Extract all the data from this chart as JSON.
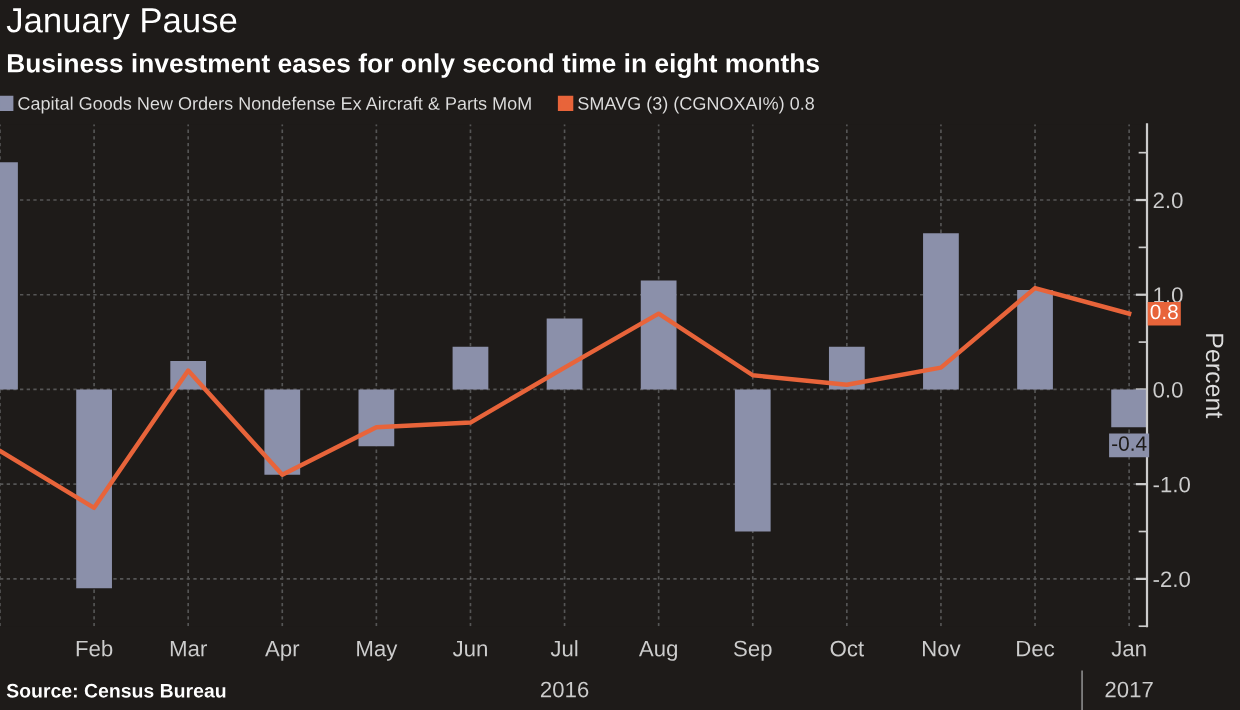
{
  "chart_data": {
    "type": "bar",
    "title": "January Pause",
    "subtitle": "Business investment eases for only second time in eight months",
    "ylabel": "Percent",
    "categories": [
      null,
      "Feb",
      "Mar",
      "Apr",
      "May",
      "Jun",
      "Jul",
      "Aug",
      "Sep",
      "Oct",
      "Nov",
      "Dec",
      "Jan"
    ],
    "series": [
      {
        "name": "Capital Goods New Orders Nondefense Ex Aircraft & Parts MoM",
        "color": "#8b90aa",
        "values": [
          2.4,
          -2.1,
          0.3,
          -0.9,
          -0.6,
          0.45,
          0.75,
          1.15,
          -1.5,
          0.45,
          1.65,
          1.05,
          -0.4
        ],
        "value_labels": [
          null,
          null,
          null,
          null,
          null,
          null,
          null,
          null,
          null,
          null,
          null,
          null,
          "-0.4"
        ]
      },
      {
        "name": "SMAVG (3) (CGNOXAI%) 0.8",
        "type": "line",
        "color": "#e8643a",
        "values": [
          -0.65,
          -1.25,
          0.2,
          -0.9,
          -0.4,
          -0.35,
          0.23,
          0.8,
          0.15,
          0.05,
          0.23,
          1.07,
          0.8
        ],
        "value_labels": [
          null,
          null,
          null,
          null,
          null,
          null,
          null,
          null,
          null,
          null,
          null,
          null,
          "0.8"
        ]
      }
    ],
    "ylim": [
      -2.5,
      2.8
    ],
    "yticks": [
      {
        "value": -2,
        "label": "-2.0"
      },
      {
        "value": -1,
        "label": "-1.0"
      },
      {
        "value": 0,
        "label": "0.0"
      },
      {
        "value": 1,
        "label": "1.0"
      },
      {
        "value": 2,
        "label": "2.0"
      }
    ],
    "grid": true,
    "legend": "top left",
    "annotations": [
      "2016",
      "2017",
      "Source: Census Bureau"
    ]
  }
}
